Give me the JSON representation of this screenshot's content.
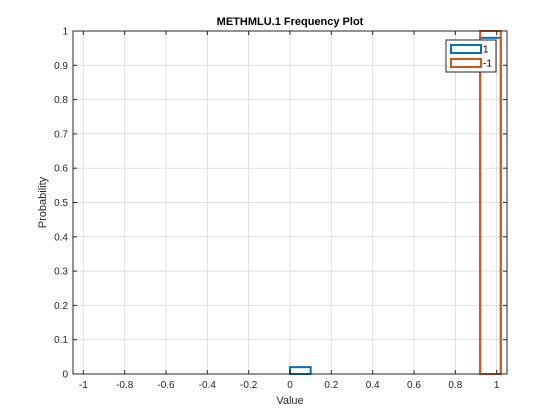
{
  "chart_data": {
    "type": "bar",
    "title": "METHMLU.1 Frequency Plot",
    "xlabel": "Value",
    "ylabel": "Probability",
    "xlim": [
      -1.05,
      1.05
    ],
    "ylim": [
      0,
      1
    ],
    "xticks": [
      -1,
      -0.8,
      -0.6,
      -0.4,
      -0.2,
      0,
      0.2,
      0.4,
      0.6,
      0.8,
      1
    ],
    "xtick_labels": [
      "-1",
      "-0.8",
      "-0.6",
      "-0.4",
      "-0.2",
      "0",
      "0.2",
      "0.4",
      "0.6",
      "0.8",
      "1"
    ],
    "yticks": [
      0,
      0.1,
      0.2,
      0.3,
      0.4,
      0.5,
      0.6,
      0.7,
      0.8,
      0.9,
      1
    ],
    "ytick_labels": [
      "0",
      "0.1",
      "0.2",
      "0.3",
      "0.4",
      "0.5",
      "0.6",
      "0.7",
      "0.8",
      "0.9",
      "1"
    ],
    "grid": true,
    "legend_position": "top-right",
    "series": [
      {
        "name": "1",
        "color": "#0072bd",
        "bins": [
          {
            "x0": -1.0,
            "x1": 0.0,
            "value": 0
          },
          {
            "x0": 0.0,
            "x1": 0.1,
            "value": 0.02
          },
          {
            "x0": 0.1,
            "x1": 0.92,
            "value": 0
          },
          {
            "x0": 0.92,
            "x1": 1.02,
            "value": 0.98
          }
        ]
      },
      {
        "name": "-1",
        "color": "#d95319",
        "bins": [
          {
            "x0": -1.0,
            "x1": 0.92,
            "value": 0
          },
          {
            "x0": 0.92,
            "x1": 1.02,
            "value": 1.0
          }
        ]
      }
    ]
  }
}
